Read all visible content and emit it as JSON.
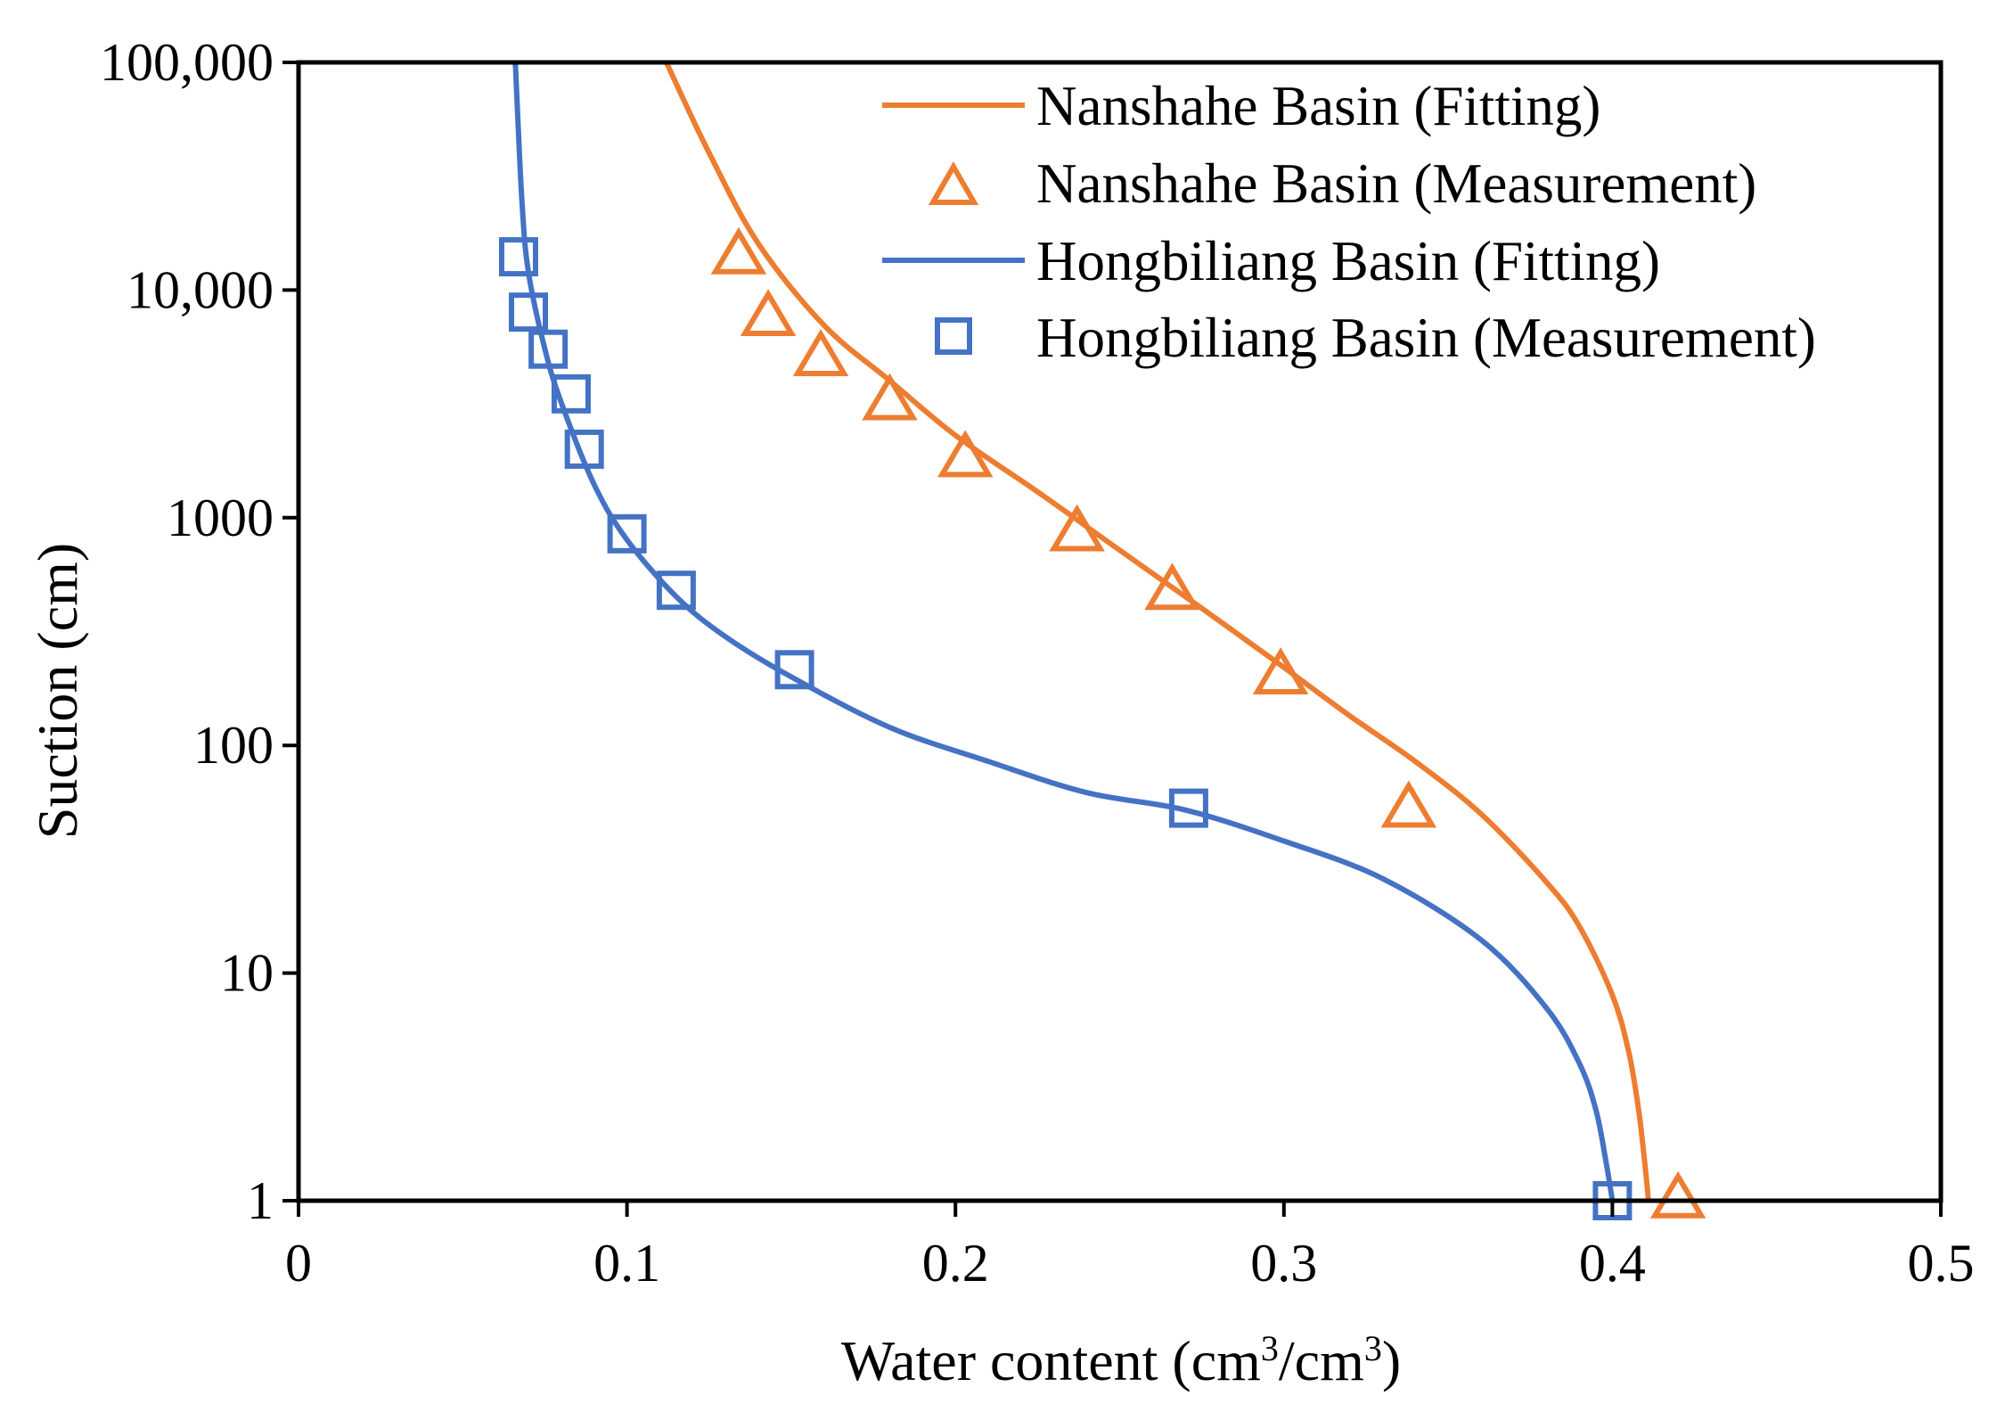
{
  "chart_data": {
    "type": "scatter",
    "title": "",
    "xlabel": "Water content (cm³/cm³)",
    "xlabel_parts": {
      "pre": "Water content (cm",
      "sup1": "3",
      "mid": "/cm",
      "sup2": "3",
      "post": ")"
    },
    "ylabel": "Suction (cm)",
    "xlim": [
      0,
      0.5
    ],
    "ylim": [
      1,
      100000
    ],
    "yscale": "log",
    "grid": false,
    "legend_position": "top-right",
    "x_ticks": [
      0,
      0.1,
      0.2,
      0.3,
      0.4,
      0.5
    ],
    "x_tick_labels": [
      "0",
      "0.1",
      "0.2",
      "0.3",
      "0.4",
      "0.5"
    ],
    "y_ticks": [
      1,
      10,
      100,
      1000,
      10000,
      100000
    ],
    "y_tick_labels": [
      "1",
      "10",
      "100",
      "1000",
      "10,000",
      "100,000"
    ],
    "series": [
      {
        "name": "Nanshahe Basin (Fitting)",
        "kind": "line",
        "color": "#ED7D31",
        "x": [
          0.112,
          0.125,
          0.14,
          0.16,
          0.18,
          0.2,
          0.225,
          0.25,
          0.275,
          0.3,
          0.32,
          0.34,
          0.36,
          0.38,
          0.39,
          0.4,
          0.405,
          0.408,
          0.41,
          0.411
        ],
        "y": [
          100000,
          40000,
          16000,
          7000,
          4000,
          2300,
          1300,
          720,
          400,
          220,
          135,
          85,
          50,
          25,
          16,
          8,
          4.5,
          2.5,
          1.4,
          1
        ]
      },
      {
        "name": "Nanshahe Basin (Measurement)",
        "kind": "scatter",
        "marker": "triangle",
        "color": "#ED7D31",
        "x": [
          0.134,
          0.143,
          0.159,
          0.18,
          0.203,
          0.237,
          0.266,
          0.299,
          0.338,
          0.42
        ],
        "y": [
          14000,
          7500,
          5000,
          3200,
          1800,
          850,
          470,
          200,
          52,
          1
        ]
      },
      {
        "name": "Hongbiliang Basin (Fitting)",
        "kind": "line",
        "color": "#4472C4",
        "x": [
          0.066,
          0.068,
          0.07,
          0.075,
          0.08,
          0.09,
          0.1,
          0.115,
          0.13,
          0.15,
          0.18,
          0.21,
          0.24,
          0.27,
          0.3,
          0.33,
          0.36,
          0.38,
          0.39,
          0.395,
          0.398,
          0.4
        ],
        "y": [
          100000,
          25000,
          12000,
          5500,
          3200,
          1400,
          800,
          450,
          300,
          200,
          120,
          85,
          62,
          52,
          38,
          26,
          14,
          7,
          4,
          2.5,
          1.5,
          1
        ]
      },
      {
        "name": "Hongbiliang Basin (Measurement)",
        "kind": "scatter",
        "marker": "square",
        "color": "#4472C4",
        "x": [
          0.067,
          0.07,
          0.076,
          0.083,
          0.087,
          0.1,
          0.115,
          0.151,
          0.271,
          0.4
        ],
        "y": [
          14000,
          8000,
          5500,
          3500,
          2000,
          850,
          480,
          215,
          53,
          1
        ]
      }
    ]
  }
}
